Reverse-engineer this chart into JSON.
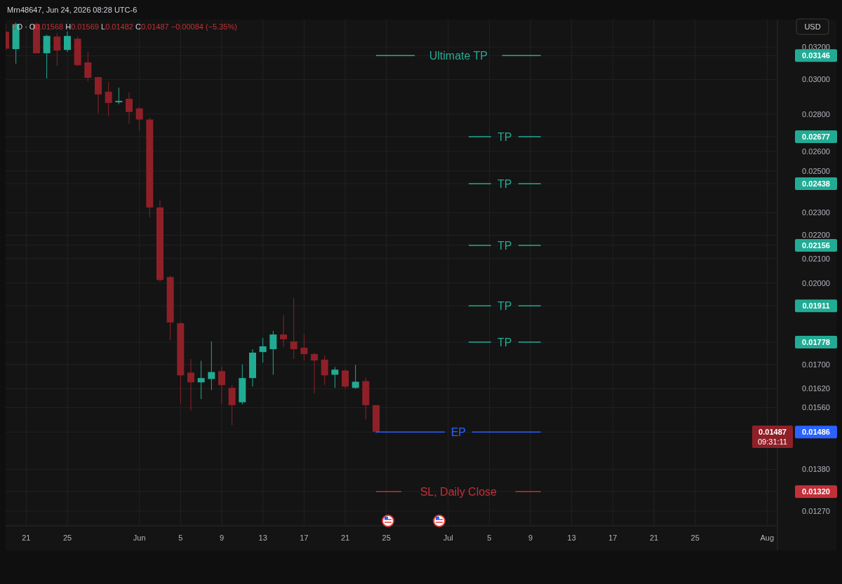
{
  "chart_data": {
    "type": "candlestick",
    "title": "Mrn48647, Jun 24, 2026 08:28 UTC-6",
    "subtitle": "1D · O0.01568 H0.01569 L0.01482 C0.01487 −0.00084 (−5.35%)",
    "ylabel": "USD",
    "x": [
      "2026-05-19",
      "2026-05-20",
      "2026-05-22",
      "2026-05-23",
      "2026-05-24",
      "2026-05-25",
      "2026-05-26",
      "2026-05-27",
      "2026-05-28",
      "2026-05-29",
      "2026-05-30",
      "2026-05-31",
      "2026-06-01",
      "2026-06-02",
      "2026-06-03",
      "2026-06-04",
      "2026-06-05",
      "2026-06-06",
      "2026-06-07",
      "2026-06-08",
      "2026-06-09",
      "2026-06-10",
      "2026-06-11",
      "2026-06-12",
      "2026-06-13",
      "2026-06-14",
      "2026-06-15",
      "2026-06-16",
      "2026-06-17",
      "2026-06-18",
      "2026-06-19",
      "2026-06-20",
      "2026-06-21",
      "2026-06-22",
      "2026-06-23",
      "2026-06-24"
    ],
    "ohlc": [
      [
        0.033,
        0.0335,
        0.0318,
        0.0319
      ],
      [
        0.03187,
        0.0336,
        0.03096,
        0.0335
      ],
      [
        0.0335,
        0.0336,
        0.0316,
        0.03161
      ],
      [
        0.03161,
        0.0328,
        0.03006,
        0.03272
      ],
      [
        0.03268,
        0.0329,
        0.03082,
        0.03178
      ],
      [
        0.03182,
        0.033,
        0.0317,
        0.03272
      ],
      [
        0.03254,
        0.0327,
        0.0308,
        0.03087
      ],
      [
        0.03104,
        0.03169,
        0.02989,
        0.0301
      ],
      [
        0.03014,
        0.03018,
        0.02804,
        0.02912
      ],
      [
        0.02928,
        0.02985,
        0.02789,
        0.02863
      ],
      [
        0.02867,
        0.02952,
        0.02856,
        0.02875
      ],
      [
        0.02887,
        0.02924,
        0.02747,
        0.02812
      ],
      [
        0.02832,
        0.0284,
        0.02709,
        0.0277
      ],
      [
        0.0277,
        0.0278,
        0.0228,
        0.02325
      ],
      [
        0.02325,
        0.02357,
        0.02006,
        0.02012
      ],
      [
        0.02024,
        0.0203,
        0.01786,
        0.01849
      ],
      [
        0.01846,
        0.0185,
        0.01572,
        0.01664
      ],
      [
        0.01673,
        0.01719,
        0.01551,
        0.01641
      ],
      [
        0.01641,
        0.01713,
        0.01587,
        0.01655
      ],
      [
        0.01652,
        0.0178,
        0.01616,
        0.01675
      ],
      [
        0.01678,
        0.01694,
        0.01572,
        0.01632
      ],
      [
        0.01623,
        0.01632,
        0.01507,
        0.01568
      ],
      [
        0.01577,
        0.01701,
        0.0157,
        0.01655
      ],
      [
        0.01655,
        0.01753,
        0.01627,
        0.01741
      ],
      [
        0.01743,
        0.01793,
        0.01707,
        0.01763
      ],
      [
        0.01753,
        0.01818,
        0.01666,
        0.01805
      ],
      [
        0.01805,
        0.01876,
        0.01761,
        0.01788
      ],
      [
        0.0178,
        0.01941,
        0.01719,
        0.01753
      ],
      [
        0.01758,
        0.01805,
        0.01714,
        0.01736
      ],
      [
        0.01736,
        0.01741,
        0.01605,
        0.01714
      ],
      [
        0.01717,
        0.01731,
        0.01632,
        0.01664
      ],
      [
        0.01666,
        0.01692,
        0.01623,
        0.01683
      ],
      [
        0.0168,
        0.01684,
        0.01622,
        0.01627
      ],
      [
        0.01623,
        0.01699,
        0.0162,
        0.01643
      ],
      [
        0.01645,
        0.01657,
        0.01524,
        0.01568
      ],
      [
        0.01568,
        0.01569,
        0.01482,
        0.01487
      ]
    ],
    "series": [
      {
        "type": "line",
        "name": "Ultimate TP",
        "color": "#22ab94",
        "x": [
          "2026-06-24",
          "2026-07-10"
        ],
        "values": [
          0.03146,
          0.03146
        ]
      },
      {
        "type": "line",
        "name": "TP",
        "color": "#22ab94",
        "x": [
          "2026-07-03",
          "2026-07-10"
        ],
        "values": [
          0.02677,
          0.02677
        ]
      },
      {
        "type": "line",
        "name": "TP",
        "color": "#22ab94",
        "x": [
          "2026-07-03",
          "2026-07-10"
        ],
        "values": [
          0.02438,
          0.02438
        ]
      },
      {
        "type": "line",
        "name": "TP",
        "color": "#22ab94",
        "x": [
          "2026-07-03",
          "2026-07-10"
        ],
        "values": [
          0.02156,
          0.02156
        ]
      },
      {
        "type": "line",
        "name": "TP",
        "color": "#22ab94",
        "x": [
          "2026-07-03",
          "2026-07-10"
        ],
        "values": [
          0.01911,
          0.01911
        ]
      },
      {
        "type": "line",
        "name": "TP",
        "color": "#22ab94",
        "x": [
          "2026-07-03",
          "2026-07-10"
        ],
        "values": [
          0.01778,
          0.01778
        ]
      },
      {
        "type": "line",
        "name": "EP",
        "color": "#2962ff",
        "x": [
          "2026-06-24",
          "2026-07-10"
        ],
        "values": [
          0.01486,
          0.01486
        ]
      },
      {
        "type": "line",
        "name": "SL, Daily Close",
        "color": "#c2303a",
        "x": [
          "2026-06-24",
          "2026-07-10"
        ],
        "values": [
          0.0132,
          0.0132
        ]
      }
    ],
    "annotations": [
      "0.01487",
      "09:31:11"
    ],
    "xlim": [
      "2026-05-19",
      "2026-08-02"
    ],
    "xticks": [
      {
        "value": "2026-05-21",
        "label": "21"
      },
      {
        "value": "2026-05-25",
        "label": "25"
      },
      {
        "value": "2026-06-01",
        "label": "Jun"
      },
      {
        "value": "2026-06-05",
        "label": "5"
      },
      {
        "value": "2026-06-09",
        "label": "9"
      },
      {
        "value": "2026-06-13",
        "label": "13"
      },
      {
        "value": "2026-06-17",
        "label": "17"
      },
      {
        "value": "2026-06-21",
        "label": "21"
      },
      {
        "value": "2026-06-25",
        "label": "25"
      },
      {
        "value": "2026-07-01",
        "label": "Jul"
      },
      {
        "value": "2026-07-05",
        "label": "5"
      },
      {
        "value": "2026-07-09",
        "label": "9"
      },
      {
        "value": "2026-07-13",
        "label": "13"
      },
      {
        "value": "2026-07-17",
        "label": "17"
      },
      {
        "value": "2026-07-21",
        "label": "21"
      },
      {
        "value": "2026-07-25",
        "label": "25"
      },
      {
        "value": "2026-08-01",
        "label": "Aug"
      }
    ],
    "ylim": [
      0.01233,
      0.0338
    ],
    "log": true,
    "yticks": [
      {
        "value": 0.032,
        "label": "0.03200"
      },
      {
        "value": 0.03146,
        "label": "0.03146"
      },
      {
        "value": 0.03,
        "label": "0.03000"
      },
      {
        "value": 0.028,
        "label": "0.02800"
      },
      {
        "value": 0.02677,
        "label": "0.02677"
      },
      {
        "value": 0.026,
        "label": "0.02600"
      },
      {
        "value": 0.025,
        "label": "0.02500"
      },
      {
        "value": 0.02438,
        "label": "0.02438"
      },
      {
        "value": 0.023,
        "label": "0.02300"
      },
      {
        "value": 0.022,
        "label": "0.02200"
      },
      {
        "value": 0.02156,
        "label": "0.02156"
      },
      {
        "value": 0.021,
        "label": "0.02100"
      },
      {
        "value": 0.02,
        "label": "0.02000"
      },
      {
        "value": 0.01911,
        "label": "0.01911"
      },
      {
        "value": 0.01778,
        "label": "0.01778"
      },
      {
        "value": 0.017,
        "label": "0.01700"
      },
      {
        "value": 0.0162,
        "label": "0.01620"
      },
      {
        "value": 0.0156,
        "label": "0.01560"
      },
      {
        "value": 0.01486,
        "label": "0.01486"
      },
      {
        "value": 0.0138,
        "label": "0.01380"
      },
      {
        "value": 0.0132,
        "label": "0.01320"
      },
      {
        "value": 0.0127,
        "label": "0.01270"
      }
    ],
    "grid": true,
    "line_style": "solid"
  }
}
